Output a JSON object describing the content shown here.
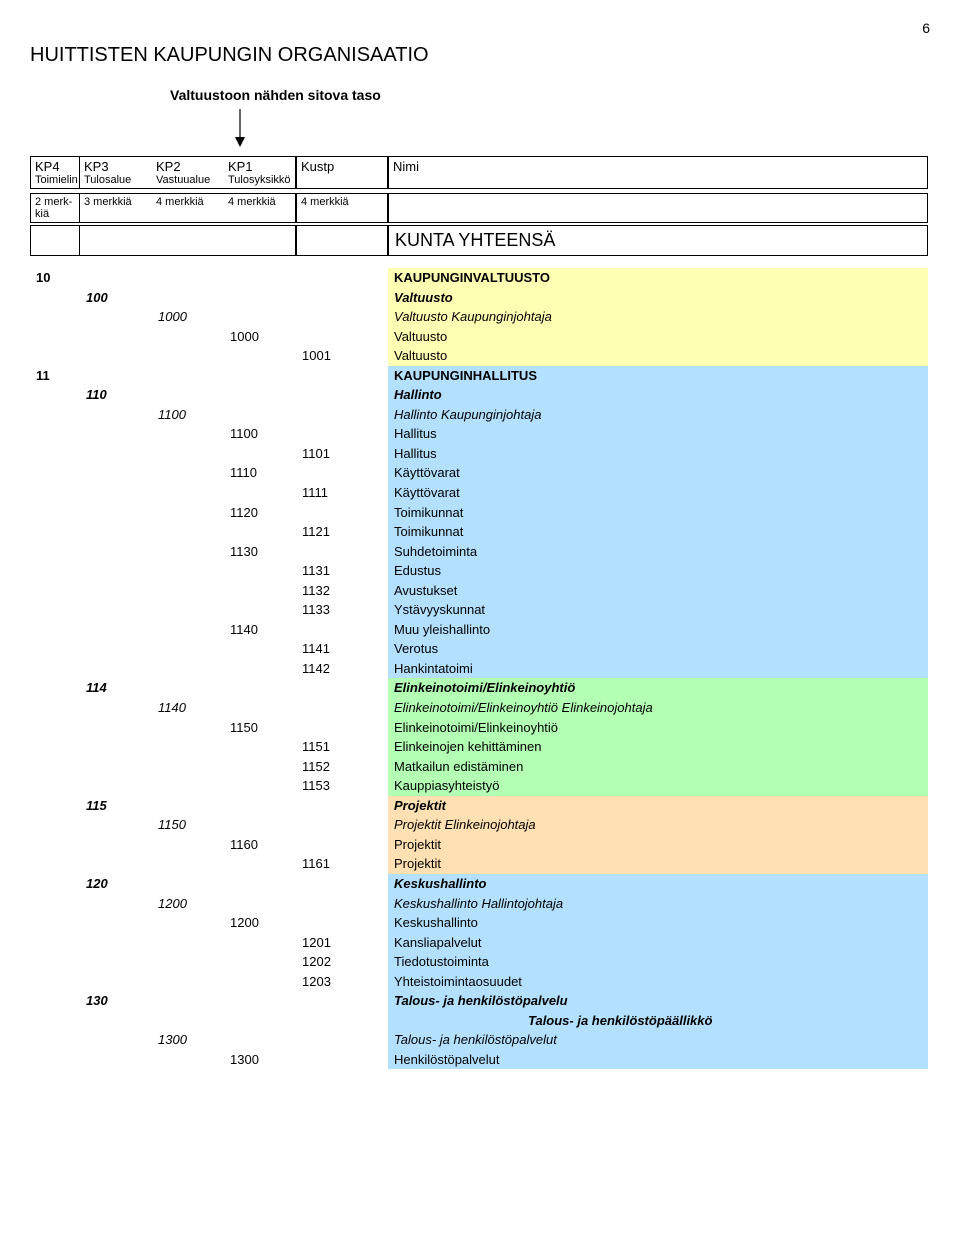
{
  "page_number": "6",
  "title": "HUITTISTEN KAUPUNGIN ORGANISAATIO",
  "subtitle": "Valtuustoon nähden sitova taso",
  "header_top": {
    "c1": "KP4",
    "c2": "KP3",
    "c3": "KP2",
    "c4": "KP1",
    "c5": "Kustp",
    "c6": "Nimi",
    "s1": "Toimielin",
    "s2": "Tulosalue",
    "s3": "Vastuualue",
    "s4": "Tulosyksikkö"
  },
  "header_row2": {
    "c1": "2 merk-kiä",
    "c2": "3 merkkiä",
    "c3": "4 merkkiä",
    "c4": "4 merkkiä",
    "c5": "4 merkkiä"
  },
  "kunta": "KUNTA YHTEENSÄ",
  "colors": {
    "yellow": "#ffffb3",
    "blue": "#b3e0ff",
    "green": "#b3ffb3",
    "tan": "#ffe0b3",
    "white": "#ffffff"
  },
  "rows": [
    {
      "kp4": "10",
      "nimi": "KAUPUNGINVALTUUSTO",
      "level": "kp4",
      "bg": "yellow"
    },
    {
      "kp3": "100",
      "nimi": "Valtuusto",
      "level": "kp3",
      "bg": "yellow"
    },
    {
      "kp2": "1000",
      "nimi": "Valtuusto Kaupunginjohtaja",
      "level": "kp2",
      "bg": "yellow"
    },
    {
      "kp1": "1000",
      "nimi": "Valtuusto",
      "level": "kp1",
      "bg": "yellow"
    },
    {
      "kustp": "1001",
      "nimi": "Valtuusto",
      "level": "kustp",
      "bg": "yellow"
    },
    {
      "kp4": "11",
      "nimi": "KAUPUNGINHALLITUS",
      "level": "kp4",
      "bg": "blue"
    },
    {
      "kp3": "110",
      "nimi": "Hallinto",
      "level": "kp3",
      "bg": "blue"
    },
    {
      "kp2": "1100",
      "nimi": "Hallinto  Kaupunginjohtaja",
      "level": "kp2",
      "bg": "blue"
    },
    {
      "kp1": "1100",
      "nimi": "Hallitus",
      "level": "kp1",
      "bg": "blue"
    },
    {
      "kustp": "1101",
      "nimi": "Hallitus",
      "level": "kustp",
      "bg": "blue"
    },
    {
      "kp1": "1110",
      "nimi": "Käyttövarat",
      "level": "kp1",
      "bg": "blue"
    },
    {
      "kustp": "1111",
      "nimi": "Käyttövarat",
      "level": "kustp",
      "bg": "blue"
    },
    {
      "kp1": "1120",
      "nimi": "Toimikunnat",
      "level": "kp1",
      "bg": "blue"
    },
    {
      "kustp": "1121",
      "nimi": "Toimikunnat",
      "level": "kustp",
      "bg": "blue"
    },
    {
      "kp1": "1130",
      "nimi": "Suhdetoiminta",
      "level": "kp1",
      "bg": "blue"
    },
    {
      "kustp": "1131",
      "nimi": "Edustus",
      "level": "kustp",
      "bg": "blue"
    },
    {
      "kustp": "1132",
      "nimi": "Avustukset",
      "level": "kustp",
      "bg": "blue"
    },
    {
      "kustp": "1133",
      "nimi": "Ystävyyskunnat",
      "level": "kustp",
      "bg": "blue"
    },
    {
      "kp1": "1140",
      "nimi": "Muu yleishallinto",
      "level": "kp1",
      "bg": "blue"
    },
    {
      "kustp": "1141",
      "nimi": "Verotus",
      "level": "kustp",
      "bg": "blue"
    },
    {
      "kustp": "1142",
      "nimi": "Hankintatoimi",
      "level": "kustp",
      "bg": "blue"
    },
    {
      "kp3": "114",
      "nimi": "Elinkeinotoimi/Elinkeinoyhtiö",
      "level": "kp3",
      "bg": "green"
    },
    {
      "kp2": "1140",
      "nimi": "Elinkeinotoimi/Elinkeinoyhtiö Elinkeinojohtaja",
      "level": "kp2",
      "bg": "green"
    },
    {
      "kp1": "1150",
      "nimi": "Elinkeinotoimi/Elinkeinoyhtiö",
      "level": "kp1",
      "bg": "green"
    },
    {
      "kustp": "1151",
      "nimi": "Elinkeinojen kehittäminen",
      "level": "kustp",
      "bg": "green"
    },
    {
      "kustp": "1152",
      "nimi": "Matkailun edistäminen",
      "level": "kustp",
      "bg": "green"
    },
    {
      "kustp": "1153",
      "nimi": "Kauppiasyhteistyö",
      "level": "kustp",
      "bg": "green"
    },
    {
      "kp3": "115",
      "nimi": "Projektit",
      "level": "kp3",
      "bg": "tan"
    },
    {
      "kp2": "1150",
      "nimi": "Projektit  Elinkeinojohtaja",
      "level": "kp2",
      "bg": "tan"
    },
    {
      "kp1": "1160",
      "nimi": "Projektit",
      "level": "kp1",
      "bg": "tan"
    },
    {
      "kustp": "1161",
      "nimi": "Projektit",
      "level": "kustp",
      "bg": "tan"
    },
    {
      "kp3": "120",
      "nimi": "Keskushallinto",
      "level": "kp3",
      "bg": "blue"
    },
    {
      "kp2": "1200",
      "nimi": "Keskushallinto Hallintojohtaja",
      "level": "kp2",
      "bg": "blue"
    },
    {
      "kp1": "1200",
      "nimi": "Keskushallinto",
      "level": "kp1",
      "bg": "blue"
    },
    {
      "kustp": "1201",
      "nimi": "Kansliapalvelut",
      "level": "kustp",
      "bg": "blue"
    },
    {
      "kustp": "1202",
      "nimi": "Tiedotustoiminta",
      "level": "kustp",
      "bg": "blue"
    },
    {
      "kustp": "1203",
      "nimi": "Yhteistoimintaosuudet",
      "level": "kustp",
      "bg": "blue"
    },
    {
      "kp3": "130",
      "nimi": "Talous- ja henkilöstöpalvelu",
      "level": "kp3",
      "bg": "blue"
    },
    {
      "nimi": "Talous- ja henkilöstöpäällikkö",
      "level": "indent",
      "bg": "blue"
    },
    {
      "kp2": "1300",
      "nimi": "Talous- ja henkilöstöpalvelut",
      "level": "kp2",
      "bg": "blue"
    },
    {
      "kp1": "1300",
      "nimi": "Henkilöstöpalvelut",
      "level": "kp1",
      "bg": "blue"
    }
  ]
}
